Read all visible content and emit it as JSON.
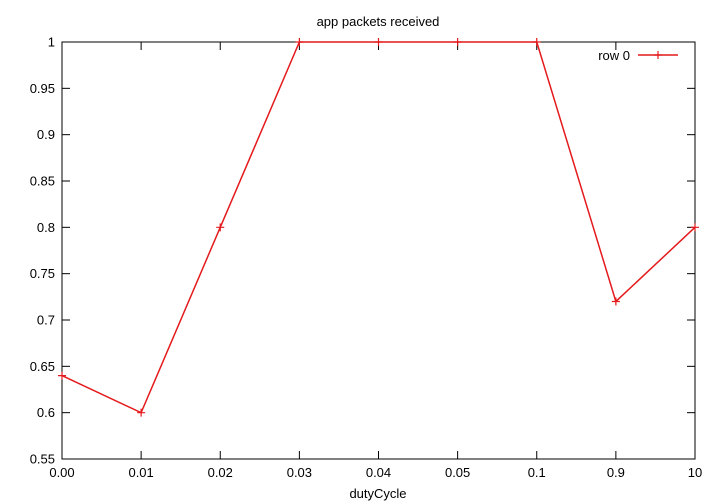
{
  "chart_data": {
    "type": "line",
    "title": "app packets received",
    "xlabel": "dutyCycle",
    "ylabel": "",
    "categories": [
      "0.00",
      "0.01",
      "0.02",
      "0.03",
      "0.04",
      "0.05",
      "0.1",
      "0.9",
      "10"
    ],
    "series": [
      {
        "name": "row 0",
        "values": [
          0.64,
          0.6,
          0.8,
          1.0,
          1.0,
          1.0,
          1.0,
          0.72,
          0.8
        ]
      }
    ],
    "ylim": [
      0.55,
      1
    ],
    "yticks": [
      "0.55",
      "0.6",
      "0.65",
      "0.7",
      "0.75",
      "0.8",
      "0.85",
      "0.9",
      "0.95",
      "1"
    ],
    "grid": false,
    "legend_position": "top-right",
    "series_color": "#e41a1c"
  }
}
